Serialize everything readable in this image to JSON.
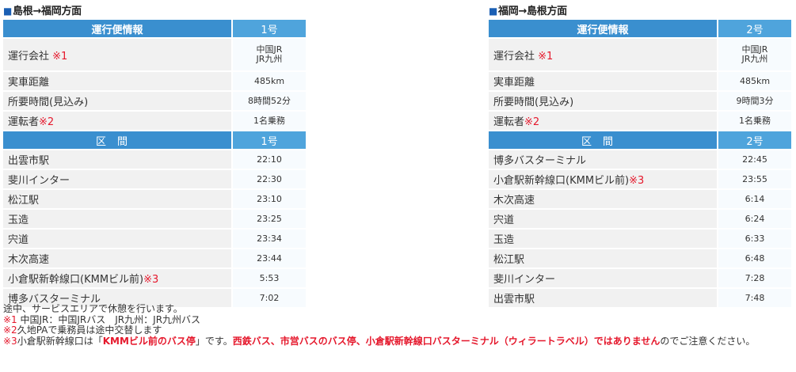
{
  "left": {
    "title": "島根→福岡方面",
    "info_header": "運行便情報",
    "info_number": "1号",
    "company_label": "運行会社",
    "company_mark": "※1",
    "company_value_1": "中国JR",
    "company_value_2": "JR九州",
    "distance_label": "実車距離",
    "distance_value": "485km",
    "time_label": "所要時間(見込み)",
    "time_value": "8時間52分",
    "driver_label": "運転者",
    "driver_mark": "※2",
    "driver_value": "1名乗務",
    "stops_header": "区間",
    "stops_number": "1号",
    "stops": [
      {
        "name": "出雲市駅",
        "mark": "",
        "time": "22:10"
      },
      {
        "name": "斐川インター",
        "mark": "",
        "time": "22:30"
      },
      {
        "name": "松江駅",
        "mark": "",
        "time": "23:10"
      },
      {
        "name": "玉造",
        "mark": "",
        "time": "23:25"
      },
      {
        "name": "宍道",
        "mark": "",
        "time": "23:34"
      },
      {
        "name": "木次高速",
        "mark": "",
        "time": "23:44"
      },
      {
        "name": "小倉駅新幹線口(KMMビル前)",
        "mark": "※3",
        "time": "5:53"
      },
      {
        "name": "博多バスターミナル",
        "mark": "",
        "time": "7:02"
      }
    ]
  },
  "right": {
    "title": "福岡→島根方面",
    "info_header": "運行便情報",
    "info_number": "2号",
    "company_label": "運行会社",
    "company_mark": "※1",
    "company_value_1": "中国JR",
    "company_value_2": "JR九州",
    "distance_label": "実車距離",
    "distance_value": "485km",
    "time_label": "所要時間(見込み)",
    "time_value": "9時間3分",
    "driver_label": "運転者",
    "driver_mark": "※2",
    "driver_value": "1名乗務",
    "stops_header": "区間",
    "stops_number": "2号",
    "stops": [
      {
        "name": "博多バスターミナル",
        "mark": "",
        "time": "22:45"
      },
      {
        "name": "小倉駅新幹線口(KMMビル前)",
        "mark": "※3",
        "time": "23:55"
      },
      {
        "name": "木次高速",
        "mark": "",
        "time": "6:14"
      },
      {
        "name": "宍道",
        "mark": "",
        "time": "6:24"
      },
      {
        "name": "玉造",
        "mark": "",
        "time": "6:33"
      },
      {
        "name": "松江駅",
        "mark": "",
        "time": "6:48"
      },
      {
        "name": "斐川インター",
        "mark": "",
        "time": "7:28"
      },
      {
        "name": "出雲市駅",
        "mark": "",
        "time": "7:48"
      }
    ]
  },
  "notes": {
    "line1": "途中、サービスエリアで休憩を行います。",
    "note1_mark": "※1",
    "note1_text": " 中国JR：中国JRバス　JR九州：JR九州バス",
    "note2_mark": "※2",
    "note2_text": "久地PAで乗務員は途中交替します",
    "note3_mark": "※3",
    "note3_text_a": "小倉駅新幹線口は「",
    "note3_highlight_a": "KMMビル前のバス停",
    "note3_text_b": "」です。",
    "note3_highlight_b": "西鉄バス、市営バスのバス停、小倉駅新幹線口バスターミナル（ウィラートラベル）ではありません",
    "note3_text_c": "のでご注意ください。"
  }
}
